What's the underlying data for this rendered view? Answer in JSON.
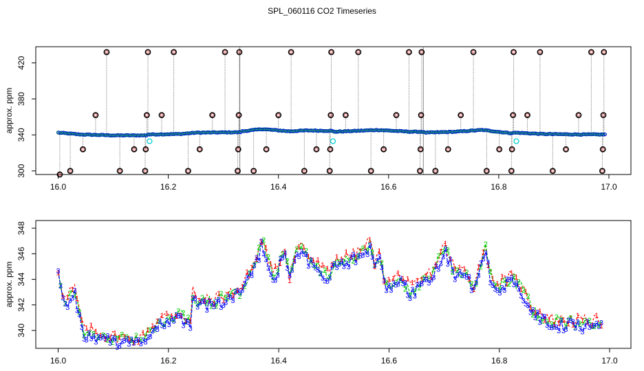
{
  "title": "SPL_060116  CO2 Timeseries",
  "chart_data": [
    {
      "type": "scatter",
      "title": "SPL_060116  CO2 Timeseries",
      "xlabel": "",
      "ylabel": "approx. ppm",
      "xlim": [
        16.0,
        17.0
      ],
      "ylim": [
        296,
        438
      ],
      "x_ticks": [
        16.0,
        16.2,
        16.4,
        16.6,
        16.8,
        17.0
      ],
      "x_tick_labels": [
        "16.0",
        "16.2",
        "16.4",
        "16.6",
        "16.8",
        "17.0"
      ],
      "y_ticks": [
        300,
        340,
        380,
        420
      ],
      "y_tick_labels": [
        "300",
        "340",
        "380",
        "420"
      ],
      "baseline_anchors": [
        {
          "x": 16.0,
          "y": 342.5
        },
        {
          "x": 16.04,
          "y": 340.5
        },
        {
          "x": 16.1,
          "y": 339.5
        },
        {
          "x": 16.16,
          "y": 339.5
        },
        {
          "x": 16.162,
          "y": 340.5
        },
        {
          "x": 16.22,
          "y": 341.0
        },
        {
          "x": 16.25,
          "y": 342.5
        },
        {
          "x": 16.33,
          "y": 343.0
        },
        {
          "x": 16.333,
          "y": 344.0
        },
        {
          "x": 16.37,
          "y": 346.5
        },
        {
          "x": 16.42,
          "y": 344.0
        },
        {
          "x": 16.45,
          "y": 345.0
        },
        {
          "x": 16.497,
          "y": 344.5
        },
        {
          "x": 16.5,
          "y": 343.5
        },
        {
          "x": 16.58,
          "y": 345.5
        },
        {
          "x": 16.64,
          "y": 343.5
        },
        {
          "x": 16.662,
          "y": 343.5
        },
        {
          "x": 16.665,
          "y": 342.5
        },
        {
          "x": 16.72,
          "y": 343.5
        },
        {
          "x": 16.77,
          "y": 345.5
        },
        {
          "x": 16.82,
          "y": 342.0
        },
        {
          "x": 16.83,
          "y": 342.5
        },
        {
          "x": 16.88,
          "y": 341.0
        },
        {
          "x": 16.95,
          "y": 340.5
        },
        {
          "x": 16.99,
          "y": 340.5
        }
      ],
      "spikes": [
        {
          "x": 16.003,
          "y": 296
        },
        {
          "x": 16.022,
          "y": 300
        },
        {
          "x": 16.045,
          "y": 324
        },
        {
          "x": 16.068,
          "y": 362
        },
        {
          "x": 16.088,
          "y": 432
        },
        {
          "x": 16.112,
          "y": 300
        },
        {
          "x": 16.138,
          "y": 324
        },
        {
          "x": 16.158,
          "y": 300
        },
        {
          "x": 16.159,
          "y": 324
        },
        {
          "x": 16.161,
          "y": 362
        },
        {
          "x": 16.163,
          "y": 432
        },
        {
          "x": 16.188,
          "y": 362
        },
        {
          "x": 16.21,
          "y": 432
        },
        {
          "x": 16.236,
          "y": 300
        },
        {
          "x": 16.257,
          "y": 324
        },
        {
          "x": 16.28,
          "y": 362
        },
        {
          "x": 16.303,
          "y": 432
        },
        {
          "x": 16.326,
          "y": 300
        },
        {
          "x": 16.327,
          "y": 324
        },
        {
          "x": 16.328,
          "y": 362
        },
        {
          "x": 16.329,
          "y": 432
        },
        {
          "x": 16.355,
          "y": 300
        },
        {
          "x": 16.378,
          "y": 324
        },
        {
          "x": 16.4,
          "y": 362
        },
        {
          "x": 16.423,
          "y": 432
        },
        {
          "x": 16.447,
          "y": 300
        },
        {
          "x": 16.469,
          "y": 324
        },
        {
          "x": 16.493,
          "y": 300
        },
        {
          "x": 16.494,
          "y": 324
        },
        {
          "x": 16.495,
          "y": 362
        },
        {
          "x": 16.496,
          "y": 432
        },
        {
          "x": 16.522,
          "y": 362
        },
        {
          "x": 16.545,
          "y": 432
        },
        {
          "x": 16.568,
          "y": 300
        },
        {
          "x": 16.591,
          "y": 324
        },
        {
          "x": 16.614,
          "y": 362
        },
        {
          "x": 16.637,
          "y": 432
        },
        {
          "x": 16.657,
          "y": 300
        },
        {
          "x": 16.658,
          "y": 324
        },
        {
          "x": 16.659,
          "y": 362
        },
        {
          "x": 16.66,
          "y": 432
        },
        {
          "x": 16.685,
          "y": 300
        },
        {
          "x": 16.708,
          "y": 324
        },
        {
          "x": 16.731,
          "y": 362
        },
        {
          "x": 16.754,
          "y": 432
        },
        {
          "x": 16.778,
          "y": 300
        },
        {
          "x": 16.801,
          "y": 324
        },
        {
          "x": 16.823,
          "y": 300
        },
        {
          "x": 16.824,
          "y": 324
        },
        {
          "x": 16.826,
          "y": 362
        },
        {
          "x": 16.827,
          "y": 432
        },
        {
          "x": 16.852,
          "y": 362
        },
        {
          "x": 16.875,
          "y": 432
        },
        {
          "x": 16.898,
          "y": 300
        },
        {
          "x": 16.922,
          "y": 324
        },
        {
          "x": 16.945,
          "y": 362
        },
        {
          "x": 16.968,
          "y": 432
        },
        {
          "x": 16.988,
          "y": 300
        },
        {
          "x": 16.989,
          "y": 324
        },
        {
          "x": 16.99,
          "y": 362
        },
        {
          "x": 16.991,
          "y": 432
        }
      ],
      "cyan_points": [
        {
          "x": 16.166,
          "y": 333
        },
        {
          "x": 16.499,
          "y": 333
        },
        {
          "x": 16.832,
          "y": 333
        }
      ],
      "gaps": [
        16.33,
        16.663
      ]
    },
    {
      "type": "line",
      "title": "",
      "xlabel": "",
      "ylabel": "approx. ppm",
      "xlim": [
        16.0,
        17.0
      ],
      "ylim": [
        338.6,
        348.6
      ],
      "x_ticks": [
        16.0,
        16.2,
        16.4,
        16.6,
        16.8,
        17.0
      ],
      "x_tick_labels": [
        "16.0",
        "16.2",
        "16.4",
        "16.6",
        "16.8",
        "17.0"
      ],
      "y_ticks": [
        340,
        342,
        344,
        346,
        348
      ],
      "y_tick_labels": [
        "340",
        "342",
        "344",
        "346",
        "348"
      ],
      "series": [
        {
          "name": "1",
          "color": "#ff0000",
          "symbol": "1"
        },
        {
          "name": "2",
          "color": "#00cd00",
          "symbol": "2"
        },
        {
          "name": "3",
          "color": "#0000ff",
          "symbol": "3"
        }
      ],
      "x": [
        16.0,
        16.005,
        16.01,
        16.015,
        16.02,
        16.03,
        16.04,
        16.05,
        16.06,
        16.08,
        16.1,
        16.12,
        16.15,
        16.18,
        16.2,
        16.22,
        16.24,
        16.245,
        16.25,
        16.28,
        16.3,
        16.33,
        16.35,
        16.36,
        16.37,
        16.38,
        16.39,
        16.4,
        16.41,
        16.42,
        16.43,
        16.44,
        16.45,
        16.47,
        16.49,
        16.5,
        16.52,
        16.55,
        16.565,
        16.575,
        16.585,
        16.59,
        16.6,
        16.62,
        16.64,
        16.66,
        16.68,
        16.7,
        16.72,
        16.74,
        16.755,
        16.765,
        16.775,
        16.785,
        16.8,
        16.82,
        16.84,
        16.86,
        16.88,
        16.9,
        16.93,
        16.96,
        16.985
      ],
      "y": [
        344.5,
        343.5,
        342.5,
        342.0,
        342.8,
        343.0,
        341.0,
        339.5,
        339.8,
        339.5,
        339.3,
        339.2,
        339.2,
        340.5,
        341.0,
        341.2,
        340.5,
        343.5,
        342.0,
        342.2,
        342.5,
        343.0,
        344.5,
        345.5,
        347.0,
        345.5,
        344.0,
        345.0,
        346.5,
        344.0,
        346.0,
        346.6,
        345.8,
        345.0,
        344.2,
        345.3,
        345.5,
        346.0,
        346.8,
        345.0,
        346.0,
        344.0,
        343.5,
        344.2,
        343.0,
        343.8,
        344.5,
        346.5,
        344.5,
        344.5,
        343.3,
        345.0,
        346.5,
        343.8,
        343.5,
        344.0,
        343.3,
        341.5,
        341.0,
        340.6,
        340.6,
        340.5,
        340.5
      ]
    }
  ]
}
